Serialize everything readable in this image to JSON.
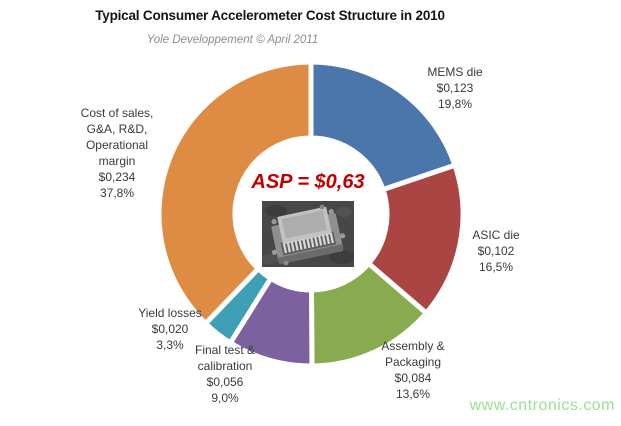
{
  "header": {
    "title": "Typical Consumer Accelerometer Cost Structure in 2010",
    "subtitle": "Yole Developpement © April 2011"
  },
  "center": {
    "asp_label": "ASP = $0,63",
    "chip_image": "mems-accelerometer-die-photo"
  },
  "watermark": {
    "text": "www.cntronics.com",
    "color": "#98e098"
  },
  "chart_data": {
    "type": "pie",
    "donut": true,
    "title": "Typical Consumer Accelerometer Cost Structure in 2010",
    "subtitle": "Yole Developpement © April 2011",
    "center_label": "ASP = $0,63",
    "total_asp_usd": "$0,63",
    "start_angle_deg": 0,
    "direction": "clockwise",
    "slices": [
      {
        "label": "MEMS die",
        "value_usd": "$0,123",
        "pct_label": "19,8%",
        "pct": 19.8,
        "color": "#4B76AB"
      },
      {
        "label": "ASIC die",
        "value_usd": "$0,102",
        "pct_label": "16,5%",
        "pct": 16.5,
        "color": "#AB4543"
      },
      {
        "label": "Assembly &\nPackaging",
        "value_usd": "$0,084",
        "pct_label": "13,6%",
        "pct": 13.6,
        "color": "#87AB4E"
      },
      {
        "label": "Final test &\ncalibration",
        "value_usd": "$0,056",
        "pct_label": "9,0%",
        "pct": 9.0,
        "color": "#7B61A0"
      },
      {
        "label": "Yield losses",
        "value_usd": "$0,020",
        "pct_label": "3,3%",
        "pct": 3.3,
        "color": "#3FA0B5"
      },
      {
        "label": "Cost of sales,\nG&A, R&D,\nOperational\nmargin",
        "value_usd": "$0,234",
        "pct_label": "37,8%",
        "pct": 37.8,
        "color": "#DE8C43"
      }
    ]
  }
}
